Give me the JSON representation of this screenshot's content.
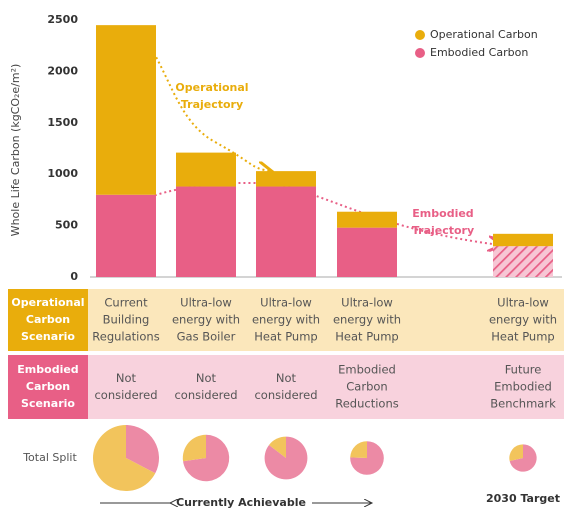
{
  "chart_data": {
    "type": "bar",
    "stacked": true,
    "y_label": "Whole Life Carbon (kgCO₂e/m²)",
    "categories": [
      null,
      null,
      null,
      null,
      null,
      null
    ],
    "series": [
      {
        "name": "Operational Carbon",
        "color": "#e9ad0c",
        "values": [
          1650,
          330,
          150,
          155,
          null,
          120
        ]
      },
      {
        "name": "Embodied Carbon",
        "color": "#e85f86",
        "values": [
          800,
          880,
          880,
          480,
          null,
          300
        ],
        "hatch": [
          false,
          false,
          false,
          false,
          null,
          true
        ]
      }
    ],
    "ylim": [
      0,
      2500
    ],
    "yticks": [
      0,
      500,
      1000,
      1500,
      2000,
      2500
    ],
    "legend": "upper right",
    "annotations": [
      {
        "lines": [
          "Operational",
          "Trajectory"
        ],
        "color": "#e9ad0c"
      },
      {
        "lines": [
          "Embodied",
          "Trajectory"
        ],
        "color": "#e85f86"
      }
    ]
  },
  "table": {
    "operational": {
      "header": [
        "Operational",
        "Carbon",
        "Scenario"
      ],
      "cells": [
        [
          "Current",
          "Building",
          "Regulations"
        ],
        [
          "Ultra-low",
          "energy with",
          "Gas Boiler"
        ],
        [
          "Ultra-low",
          "energy with",
          "Heat Pump"
        ],
        [
          "Ultra-low",
          "energy with",
          "Heat Pump"
        ],
        null,
        [
          "Ultra-low",
          "energy with",
          "Heat Pump"
        ]
      ]
    },
    "embodied": {
      "header": [
        "Embodied",
        "Carbon",
        "Scenario"
      ],
      "cells": [
        [
          "Not",
          "considered"
        ],
        [
          "Not",
          "considered"
        ],
        [
          "Not",
          "considered"
        ],
        [
          "Embodied",
          "Carbon",
          "Reductions"
        ],
        null,
        [
          "Future",
          "Embodied",
          "Benchmark"
        ]
      ]
    },
    "split_label": "Total Split",
    "achievable_label": "Currently Achievable",
    "target_label": "2030 Target"
  }
}
